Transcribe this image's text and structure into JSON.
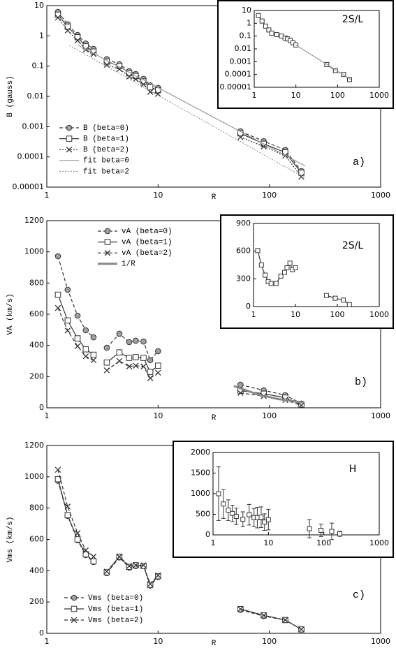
{
  "chart_data": [
    {
      "type": "line",
      "xlog": true,
      "ylog": true,
      "xlabel": "R",
      "ylabel": "B (gauss)",
      "annotation": "a)",
      "legend": "lower left",
      "xlim": [
        1,
        1000
      ],
      "ylim": [
        1e-05,
        10
      ],
      "xticks": [
        1,
        10,
        100,
        1000
      ],
      "yticks": [
        10,
        1,
        0.1,
        0.01,
        0.001,
        0.0001,
        1e-05
      ],
      "x": [
        1.26,
        1.54,
        1.89,
        2.24,
        2.63,
        null,
        3.46,
        4.49,
        5.5,
        6.3,
        7.4,
        8.5,
        10,
        null,
        55,
        89,
        139,
        194
      ],
      "series": [
        {
          "name": "B (beta=0)",
          "color": "#333333",
          "marker": "circle",
          "marker_fill": "#a0a0a0",
          "dash": "dashed",
          "values": [
            6.2,
            2.4,
            1.07,
            0.56,
            0.37,
            null,
            0.17,
            0.115,
            0.068,
            0.055,
            0.038,
            0.023,
            0.019,
            null,
            0.0007,
            0.00033,
            0.00017,
            3.4e-05
          ]
        },
        {
          "name": "B (beta=1)",
          "color": "#333333",
          "marker": "square",
          "marker_fill": "#ffffff",
          "dash": "solid",
          "values": [
            5.0,
            2.0,
            0.9,
            0.45,
            0.3,
            null,
            0.14,
            0.1,
            0.058,
            0.047,
            0.031,
            0.02,
            0.016,
            null,
            0.0006,
            0.00027,
            0.00014,
            3e-05
          ]
        },
        {
          "name": "B (beta=2)",
          "color": "#333333",
          "marker": "cross",
          "dash": "dotted",
          "values": [
            4.0,
            1.5,
            0.7,
            0.35,
            0.25,
            null,
            0.11,
            0.08,
            0.045,
            0.037,
            0.025,
            0.014,
            0.012,
            null,
            0.00045,
            0.00022,
            0.00011,
            2.2e-05
          ]
        },
        {
          "name": "fit beta=0",
          "color": "#999999",
          "dash": "solid",
          "x": [
            1.9,
            210
          ],
          "values": [
            0.5,
            5e-05
          ]
        },
        {
          "name": "fit beta=2",
          "color": "#999999",
          "dash": "dotted",
          "x": [
            1.6,
            210
          ],
          "values": [
            0.48,
            2e-05
          ]
        }
      ]
    },
    {
      "type": "line",
      "xlog": true,
      "ylog": true,
      "title": "2S/L",
      "xlim": [
        1,
        1000
      ],
      "ylim": [
        1e-05,
        10
      ],
      "xticks": [
        1,
        10,
        100,
        1000
      ],
      "yticks": [
        10,
        1,
        0.1,
        0.01,
        0.001,
        0.0001,
        1e-05
      ],
      "x": [
        1.26,
        1.54,
        1.89,
        2.24,
        2.63,
        null,
        3.46,
        4.49,
        5.5,
        6.3,
        7.4,
        8.5,
        10,
        null,
        55,
        89,
        139,
        194
      ],
      "series": [
        {
          "color": "#333333",
          "marker": "square",
          "marker_fill": "#ffffff",
          "dash": "solid",
          "values": [
            4,
            1.5,
            0.6,
            0.3,
            0.17,
            null,
            0.13,
            0.1,
            0.07,
            0.06,
            0.045,
            0.03,
            0.02,
            null,
            0.0006,
            0.0002,
            0.0001,
            4e-05
          ]
        },
        {
          "color": "#999999",
          "dash": "solid",
          "x": [
            10,
            210
          ],
          "values": [
            0.02,
            4e-05
          ]
        }
      ]
    },
    {
      "type": "line",
      "xlog": true,
      "ylog": false,
      "xlabel": "R",
      "ylabel": "VA (km/s)",
      "annotation": "b)",
      "legend": "upper center",
      "xlim": [
        1,
        1000
      ],
      "ylim": [
        0,
        1200
      ],
      "xticks": [
        1,
        10,
        100,
        1000
      ],
      "yticks": [
        0,
        200,
        400,
        600,
        800,
        1000,
        1200
      ],
      "x": [
        1.26,
        1.54,
        1.89,
        2.24,
        2.63,
        null,
        3.46,
        4.49,
        5.5,
        6.3,
        7.4,
        8.5,
        10,
        null,
        55,
        89,
        139,
        194
      ],
      "series": [
        {
          "name": "vA (beta=0)",
          "color": "#333333",
          "marker": "circle",
          "marker_fill": "#a0a0a0",
          "dash": "dashed",
          "values": [
            972,
            757,
            591,
            497,
            452,
            null,
            385,
            475,
            421,
            430,
            425,
            305,
            363,
            null,
            148,
            112,
            81,
            27
          ]
        },
        {
          "name": "vA (beta=1)",
          "color": "#333333",
          "marker": "square",
          "marker_fill": "#ffffff",
          "dash": "solid",
          "values": [
            725,
            560,
            445,
            375,
            340,
            null,
            290,
            355,
            320,
            325,
            320,
            230,
            270,
            null,
            110,
            90,
            65,
            20
          ]
        },
        {
          "name": "vA (beta=2)",
          "color": "#333333",
          "marker": "cross",
          "dash": "dashed",
          "values": [
            640,
            495,
            395,
            330,
            305,
            null,
            240,
            300,
            265,
            270,
            265,
            190,
            225,
            null,
            95,
            75,
            50,
            15
          ]
        },
        {
          "name": "1/R",
          "color": "#888888",
          "dash": "thick",
          "x": [
            48,
            80,
            120,
            200
          ],
          "values": [
            140,
            84,
            56,
            34
          ]
        }
      ]
    },
    {
      "type": "line",
      "xlog": true,
      "ylog": false,
      "title": "2S/L",
      "xlim": [
        1,
        1000
      ],
      "ylim": [
        0,
        900
      ],
      "xticks": [
        1,
        10,
        100,
        1000
      ],
      "yticks": [
        0,
        300,
        600,
        900
      ],
      "x": [
        1.26,
        1.54,
        1.89,
        2.24,
        2.63,
        null,
        3.46,
        4.49,
        5.5,
        6.3,
        7.4,
        8.5,
        10,
        null,
        55,
        89,
        139,
        194
      ],
      "series": [
        {
          "color": "#333333",
          "marker": "square",
          "marker_fill": "#ffffff",
          "dash": "solid",
          "values": [
            606,
            450,
            340,
            270,
            250,
            null,
            250,
            330,
            370,
            420,
            470,
            400,
            420,
            null,
            120,
            90,
            70,
            20
          ]
        }
      ]
    },
    {
      "type": "line",
      "xlog": true,
      "ylog": false,
      "xlabel": "R",
      "ylabel": "Vms (km/s)",
      "annotation": "c)",
      "legend": "lower left",
      "xlim": [
        1,
        1000
      ],
      "ylim": [
        0,
        1200
      ],
      "xticks": [
        1,
        10,
        100,
        1000
      ],
      "yticks": [
        0,
        200,
        400,
        600,
        800,
        1000,
        1200
      ],
      "x": [
        1.26,
        1.54,
        1.89,
        2.24,
        2.63,
        null,
        3.46,
        4.49,
        5.5,
        6.3,
        7.4,
        8.5,
        10,
        null,
        55,
        89,
        139,
        194
      ],
      "series": [
        {
          "name": "Vms (beta=0)",
          "color": "#333333",
          "marker": "circle",
          "marker_fill": "#a0a0a0",
          "dash": "dashed",
          "values": [
            975,
            750,
            595,
            500,
            455,
            null,
            385,
            485,
            420,
            430,
            430,
            305,
            360,
            null,
            150,
            110,
            85,
            25
          ]
        },
        {
          "name": "Vms (beta=1)",
          "color": "#333333",
          "marker": "square",
          "marker_fill": "#ffffff",
          "dash": "solid",
          "values": [
            985,
            755,
            600,
            505,
            460,
            null,
            390,
            490,
            425,
            435,
            430,
            310,
            365,
            null,
            155,
            115,
            85,
            25
          ]
        },
        {
          "name": "Vms (beta=2)",
          "color": "#333333",
          "marker": "cross",
          "dash": "dashed",
          "values": [
            1045,
            810,
            640,
            530,
            490,
            null,
            395,
            490,
            430,
            435,
            435,
            315,
            370,
            null,
            155,
            115,
            85,
            25
          ]
        }
      ]
    },
    {
      "type": "line",
      "xlog": true,
      "ylog": false,
      "title": "H",
      "xlim": [
        1,
        1000
      ],
      "ylim": [
        0,
        2000
      ],
      "xticks": [
        1,
        10,
        100,
        1000
      ],
      "yticks": [
        0,
        500,
        1000,
        1500,
        2000
      ],
      "x": [
        1.26,
        1.54,
        1.89,
        2.24,
        2.63,
        null,
        3.46,
        4.49,
        5.5,
        6.3,
        7.4,
        8.5,
        10,
        null,
        55,
        89,
        139,
        194
      ],
      "series": [
        {
          "color": "#333333",
          "marker": "square",
          "marker_fill": "#ffffff",
          "dash": "none",
          "values": [
            1000,
            750,
            600,
            520,
            450,
            null,
            380,
            490,
            420,
            420,
            430,
            310,
            370,
            null,
            150,
            110,
            85,
            25
          ],
          "errors": [
            650,
            350,
            250,
            200,
            200,
            null,
            180,
            250,
            220,
            250,
            250,
            200,
            250,
            null,
            220,
            150,
            200,
            60
          ]
        }
      ]
    }
  ]
}
